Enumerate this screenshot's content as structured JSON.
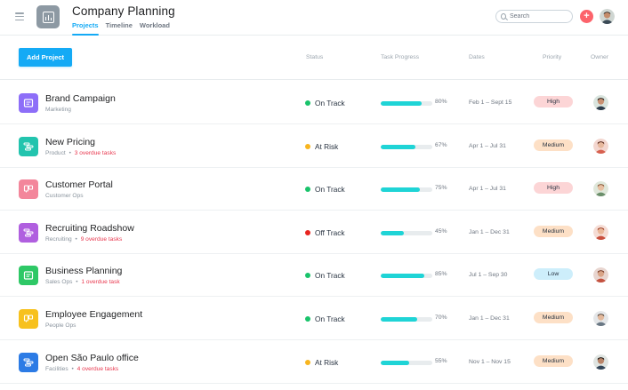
{
  "header": {
    "title": "Company Planning",
    "tabs": [
      {
        "label": "Projects",
        "active": true
      },
      {
        "label": "Timeline",
        "active": false
      },
      {
        "label": "Workload",
        "active": false
      }
    ],
    "search": {
      "placeholder": "Search"
    },
    "add_icon": "plus-icon"
  },
  "toolbar": {
    "add_project_label": "Add Project"
  },
  "columns": {
    "status": "Status",
    "progress": "Task Progress",
    "dates": "Dates",
    "priority": "Priority",
    "owner": "Owner"
  },
  "colors": {
    "accent": "#14aaf5",
    "on_track": "#19c36b",
    "at_risk": "#f8b51f",
    "off_track": "#e8241f",
    "progress": "#1fd4d6",
    "overdue": "#e8384f"
  },
  "projects": [
    {
      "name": "Brand Campaign",
      "team": "Marketing",
      "overdue": "",
      "status": "On Track",
      "status_key": "on_track",
      "progress": 80,
      "progress_label": "80%",
      "dates": "Feb 1 – Sept 15",
      "priority": "High",
      "priority_key": "high",
      "icon": "document-icon",
      "icon_color": "#8d6ef8"
    },
    {
      "name": "New Pricing",
      "team": "Product",
      "overdue": "3 overdue tasks",
      "status": "At Risk",
      "status_key": "at_risk",
      "progress": 67,
      "progress_label": "67%",
      "dates": "Apr 1 – Jul 31",
      "priority": "Medium",
      "priority_key": "medium",
      "icon": "timeline-icon",
      "icon_color": "#22c4ae"
    },
    {
      "name": "Customer Portal",
      "team": "Customer Ops",
      "overdue": "",
      "status": "On Track",
      "status_key": "on_track",
      "progress": 75,
      "progress_label": "75%",
      "dates": "Apr 1 – Jul 31",
      "priority": "High",
      "priority_key": "high",
      "icon": "board-icon",
      "icon_color": "#f3869b"
    },
    {
      "name": "Recruiting Roadshow",
      "team": "Recruiting",
      "overdue": "9 overdue tasks",
      "status": "Off Track",
      "status_key": "off_track",
      "progress": 45,
      "progress_label": "45%",
      "dates": "Jan 1 – Dec 31",
      "priority": "Medium",
      "priority_key": "medium",
      "icon": "timeline-icon",
      "icon_color": "#b05fdf"
    },
    {
      "name": "Business Planning",
      "team": "Sales Ops",
      "overdue": "1 overdue task",
      "status": "On Track",
      "status_key": "on_track",
      "progress": 85,
      "progress_label": "85%",
      "dates": "Jul 1 – Sep 30",
      "priority": "Low",
      "priority_key": "low",
      "icon": "document-icon",
      "icon_color": "#2ec866"
    },
    {
      "name": "Employee Engagement",
      "team": "People Ops",
      "overdue": "",
      "status": "On Track",
      "status_key": "on_track",
      "progress": 70,
      "progress_label": "70%",
      "dates": "Jan 1 – Dec 31",
      "priority": "Medium",
      "priority_key": "medium",
      "icon": "board-icon",
      "icon_color": "#f7c11d"
    },
    {
      "name": "Open São Paulo office",
      "team": "Facilities",
      "overdue": "4 overdue tasks",
      "status": "At Risk",
      "status_key": "at_risk",
      "progress": 55,
      "progress_label": "55%",
      "dates": "Nov 1 – Nov 15",
      "priority": "Medium",
      "priority_key": "medium",
      "icon": "timeline-icon",
      "icon_color": "#2c7be5"
    }
  ]
}
